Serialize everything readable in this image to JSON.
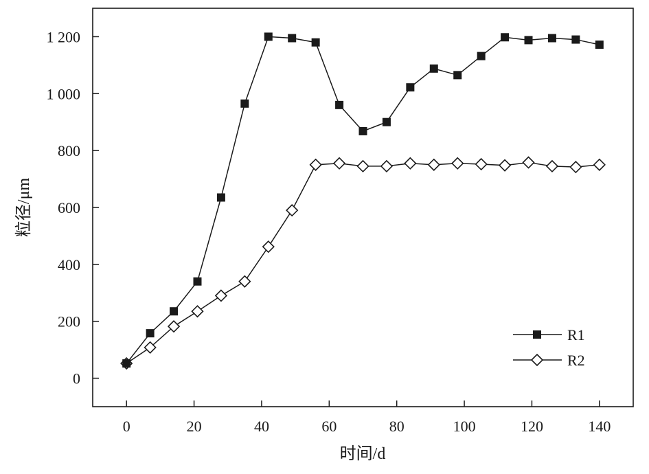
{
  "chart_data": {
    "type": "line",
    "title": "",
    "xlabel": "时间/d",
    "ylabel": "粒径/μm",
    "xlim": [
      -10,
      150
    ],
    "ylim": [
      -100,
      1300
    ],
    "xticks": [
      0,
      20,
      40,
      60,
      80,
      100,
      120,
      140
    ],
    "xtick_labels": [
      "0",
      "20",
      "40",
      "60",
      "80",
      "100",
      "120",
      "140"
    ],
    "yticks": [
      0,
      200,
      400,
      600,
      800,
      1000,
      1200
    ],
    "ytick_labels": [
      "0",
      "200",
      "400",
      "600",
      "800",
      "1 000",
      "1 200"
    ],
    "grid": false,
    "legend_position": "bottom-right",
    "x": [
      0,
      7,
      14,
      21,
      28,
      35,
      42,
      49,
      56,
      63,
      70,
      77,
      84,
      91,
      98,
      105,
      112,
      119,
      126,
      133,
      140
    ],
    "series": [
      {
        "name": "R1",
        "marker": "filled-square",
        "color": "#1a1a1a",
        "values": [
          52,
          158,
          235,
          340,
          635,
          965,
          1200,
          1195,
          1180,
          960,
          868,
          900,
          1022,
          1088,
          1065,
          1132,
          1198,
          1188,
          1195,
          1190,
          1172
        ]
      },
      {
        "name": "R2",
        "marker": "open-diamond",
        "color": "#1a1a1a",
        "values": [
          52,
          108,
          182,
          235,
          290,
          340,
          462,
          590,
          750,
          755,
          745,
          745,
          755,
          750,
          755,
          752,
          748,
          758,
          745,
          742,
          750
        ]
      }
    ]
  }
}
